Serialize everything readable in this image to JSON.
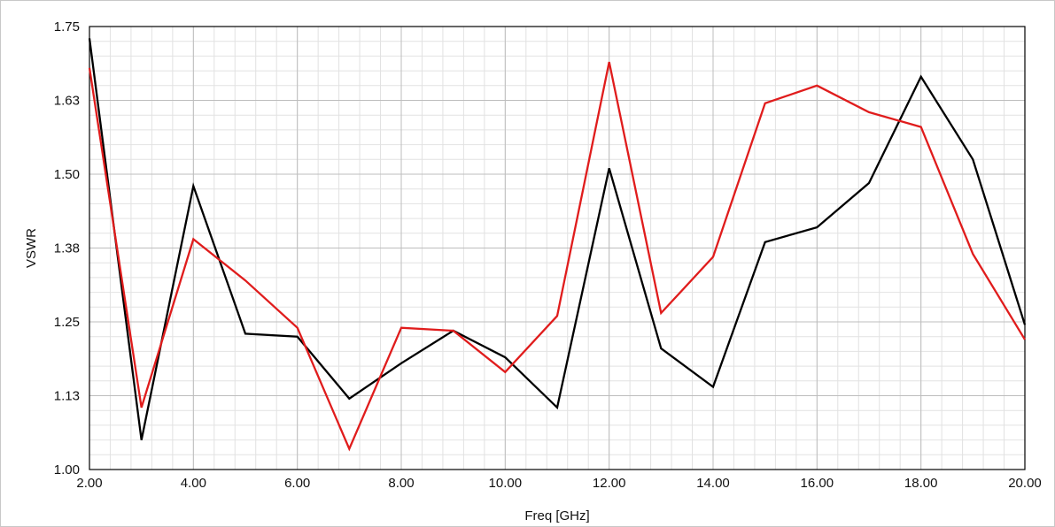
{
  "chart_data": {
    "type": "line",
    "title": "",
    "xlabel": "Freq [GHz]",
    "ylabel": "VSWR",
    "xlim": [
      2,
      20
    ],
    "ylim": [
      1.0,
      1.75
    ],
    "x_ticks": [
      "2.00",
      "4.00",
      "6.00",
      "8.00",
      "10.00",
      "12.00",
      "14.00",
      "16.00",
      "18.00",
      "20.00"
    ],
    "x_tick_values": [
      2,
      4,
      6,
      8,
      10,
      12,
      14,
      16,
      18,
      20
    ],
    "y_ticks": [
      "1.00",
      "1.13",
      "1.25",
      "1.38",
      "1.50",
      "1.63",
      "1.75"
    ],
    "y_tick_values": [
      1.0,
      1.125,
      1.25,
      1.375,
      1.5,
      1.625,
      1.75
    ],
    "grid": true,
    "legend": "none",
    "x": [
      2,
      3,
      4,
      5,
      6,
      7,
      8,
      9,
      10,
      11,
      12,
      13,
      14,
      15,
      16,
      17,
      18,
      19,
      20
    ],
    "series": [
      {
        "color": "#000000",
        "values": [
          1.73,
          1.05,
          1.48,
          1.23,
          1.225,
          1.12,
          1.18,
          1.235,
          1.19,
          1.105,
          1.51,
          1.205,
          1.14,
          1.385,
          1.41,
          1.485,
          1.665,
          1.525,
          1.245
        ]
      },
      {
        "color": "#e01c1c",
        "values": [
          1.68,
          1.105,
          1.39,
          1.32,
          1.24,
          1.035,
          1.24,
          1.235,
          1.165,
          1.26,
          1.69,
          1.265,
          1.36,
          1.62,
          1.65,
          1.605,
          1.58,
          1.365,
          1.22
        ]
      }
    ]
  }
}
